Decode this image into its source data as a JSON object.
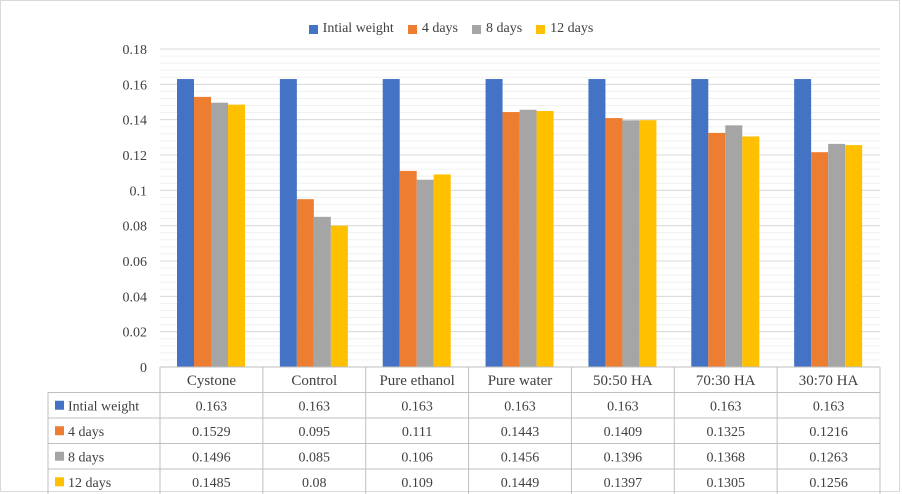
{
  "chart_data": {
    "type": "bar",
    "categories": [
      "Cystone",
      "Control",
      "Pure ethanol",
      "Pure water",
      "50:50 HA",
      "70:30 HA",
      "30:70 HA"
    ],
    "series": [
      {
        "name": "Intial weight",
        "color": "#4472c4",
        "values": [
          0.163,
          0.163,
          0.163,
          0.163,
          0.163,
          0.163,
          0.163
        ]
      },
      {
        "name": "4 days",
        "color": "#ed7d31",
        "values": [
          0.1529,
          0.095,
          0.111,
          0.1443,
          0.1409,
          0.1325,
          0.1216
        ]
      },
      {
        "name": "8 days",
        "color": "#a5a5a5",
        "values": [
          0.1496,
          0.085,
          0.106,
          0.1456,
          0.1396,
          0.1368,
          0.1263
        ]
      },
      {
        "name": "12 days",
        "color": "#ffc000",
        "values": [
          0.1485,
          0.08,
          0.109,
          0.1449,
          0.1397,
          0.1305,
          0.1256
        ]
      }
    ],
    "table_values": [
      [
        "0.163",
        "0.163",
        "0.163",
        "0.163",
        "0.163",
        "0.163",
        "0.163"
      ],
      [
        "0.1529",
        "0.095",
        "0.111",
        "0.1443",
        "0.1409",
        "0.1325",
        "0.1216"
      ],
      [
        "0.1496",
        "0.085",
        "0.106",
        "0.1456",
        "0.1396",
        "0.1368",
        "0.1263"
      ],
      [
        "0.1485",
        "0.08",
        "0.109",
        "0.1449",
        "0.1397",
        "0.1305",
        "0.1256"
      ]
    ],
    "yticks": [
      "0",
      "0.02",
      "0.04",
      "0.06",
      "0.08",
      "0.1",
      "0.12",
      "0.14",
      "0.16",
      "0.18"
    ],
    "ylim": [
      0,
      0.18
    ],
    "ymajor": 0.02,
    "yminor": 0.004,
    "grid": true,
    "legend": "top-center",
    "data_table": true
  }
}
